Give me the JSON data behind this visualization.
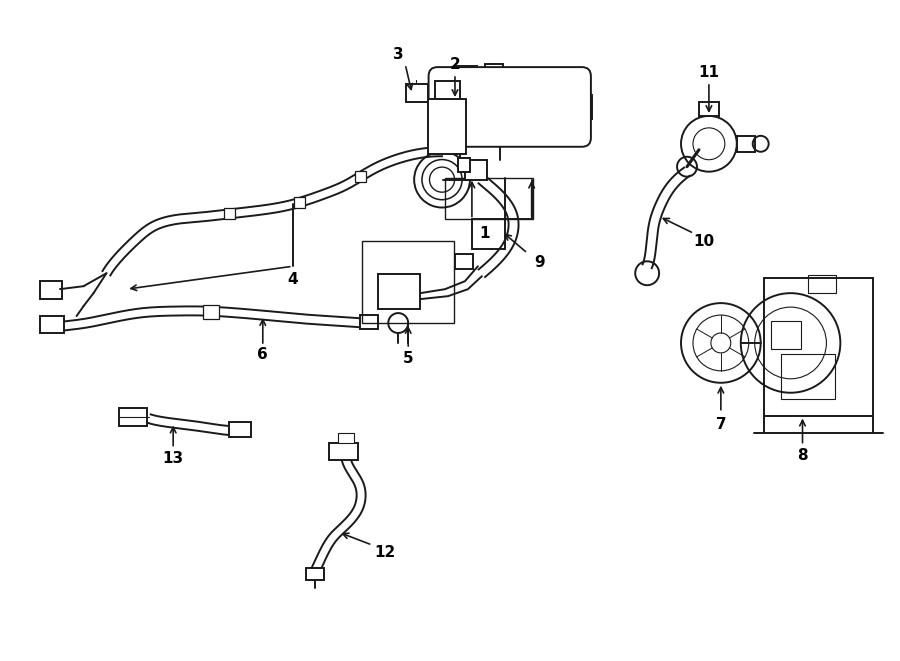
{
  "bg_color": "#ffffff",
  "line_color": "#1a1a1a",
  "fig_width": 9.0,
  "fig_height": 6.61,
  "dpi": 100,
  "xlim": [
    0,
    9.0
  ],
  "ylim": [
    0,
    6.61
  ],
  "label_fontsize": 11,
  "label_fontweight": "bold",
  "lw": 1.4,
  "lw_thick": 2.2,
  "lw_thin": 0.8
}
